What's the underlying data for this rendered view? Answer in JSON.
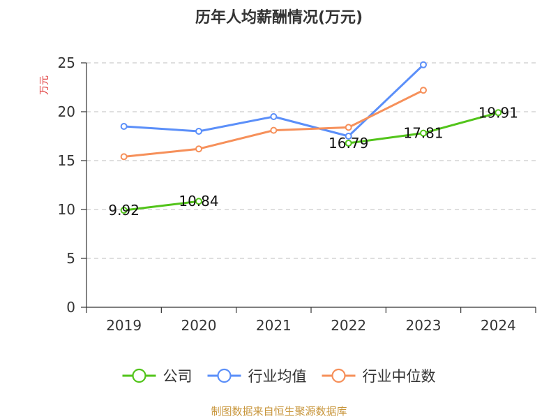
{
  "chart_data": {
    "type": "line",
    "title": "历年人均薪酬情况(万元)",
    "ylabel": "万元",
    "xlabel": "",
    "categories": [
      "2019",
      "2020",
      "2021",
      "2022",
      "2023",
      "2024"
    ],
    "ylim": [
      0,
      25
    ],
    "yticks": [
      0,
      5,
      10,
      15,
      20,
      25
    ],
    "grid": true,
    "legend": "bottom",
    "series": [
      {
        "name": "公司",
        "color": "#52c41a",
        "values": [
          9.92,
          10.84,
          null,
          16.79,
          17.81,
          19.91
        ],
        "labels": [
          "9.92",
          "10.84",
          null,
          "16.79",
          "17.81",
          "19.91"
        ]
      },
      {
        "name": "行业均值",
        "color": "#5b8ff9",
        "values": [
          18.5,
          18.0,
          19.5,
          17.5,
          24.8,
          null
        ],
        "labels": null
      },
      {
        "name": "行业中位数",
        "color": "#f6905a",
        "values": [
          15.4,
          16.2,
          18.1,
          18.4,
          22.2,
          null
        ],
        "labels": null
      }
    ]
  },
  "source": "制图数据来自恒生聚源数据库"
}
